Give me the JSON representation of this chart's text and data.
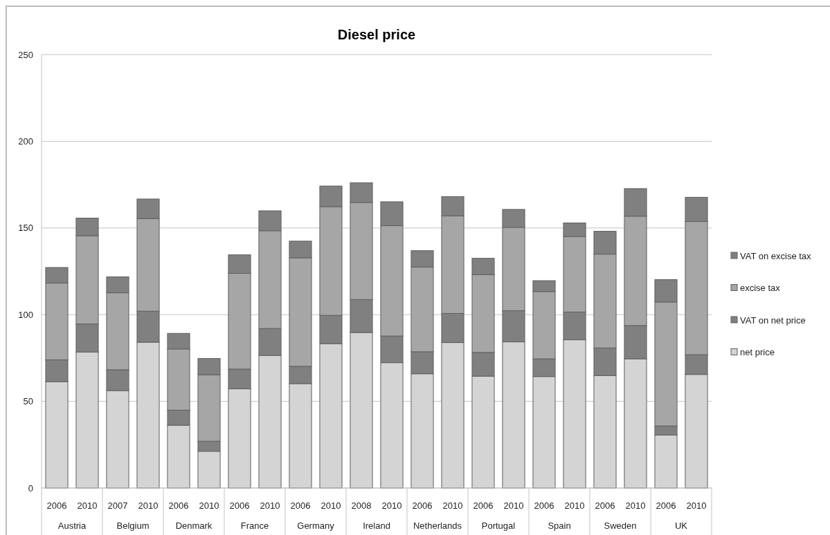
{
  "chart_data": {
    "type": "bar",
    "title": "Diesel price",
    "categories": [
      "2006",
      "2010",
      "2007",
      "2010",
      "2006",
      "2010",
      "2006",
      "2010",
      "2006",
      "2010",
      "2008",
      "2010",
      "2006",
      "2010",
      "2006",
      "2010",
      "2006",
      "2010",
      "2006",
      "2010",
      "2006",
      "2010"
    ],
    "annotations": [
      "Austria",
      "Belgium",
      "Denmark",
      "France",
      "Germany",
      "Ireland",
      "Netherlands",
      "Portugal",
      "Spain",
      "Sweden",
      "UK"
    ],
    "stacked": true,
    "series": [
      {
        "name": "net price",
        "color": "#d4d4d4",
        "values": [
          61.3,
          78.4,
          56.2,
          84.1,
          36.2,
          21.2,
          57.2,
          76.5,
          60.2,
          83.2,
          89.7,
          72.3,
          65.9,
          83.9,
          64.5,
          84.3,
          64.3,
          85.5,
          64.8,
          74.5,
          30.5,
          65.5
        ]
      },
      {
        "name": "VAT on net price",
        "color": "#808080",
        "values": [
          12.6,
          16.2,
          12.0,
          17.9,
          8.7,
          5.8,
          11.4,
          15.5,
          10.0,
          16.4,
          19.0,
          15.4,
          12.7,
          16.8,
          13.7,
          18.0,
          10.2,
          16.0,
          16.0,
          19.2,
          5.3,
          11.4
        ]
      },
      {
        "name": "excise tax",
        "color": "#a6a6a6",
        "values": [
          44.3,
          50.9,
          44.4,
          53.4,
          35.3,
          38.3,
          55.2,
          56.4,
          62.6,
          62.7,
          56.0,
          63.6,
          48.9,
          56.3,
          44.9,
          48.1,
          38.8,
          43.5,
          54.1,
          63.1,
          71.5,
          76.8
        ]
      },
      {
        "name": "VAT on excise tax",
        "color": "#808080",
        "values": [
          9.0,
          10.2,
          9.2,
          11.3,
          9.0,
          9.4,
          10.7,
          11.5,
          9.6,
          11.9,
          11.4,
          13.8,
          9.4,
          11.1,
          9.4,
          10.3,
          6.3,
          7.9,
          13.2,
          15.9,
          12.9,
          14.0
        ]
      }
    ],
    "ylim": [
      0,
      250
    ],
    "yticks": [
      0,
      50,
      100,
      150,
      200,
      250
    ],
    "grid": "y",
    "legend": "right"
  }
}
